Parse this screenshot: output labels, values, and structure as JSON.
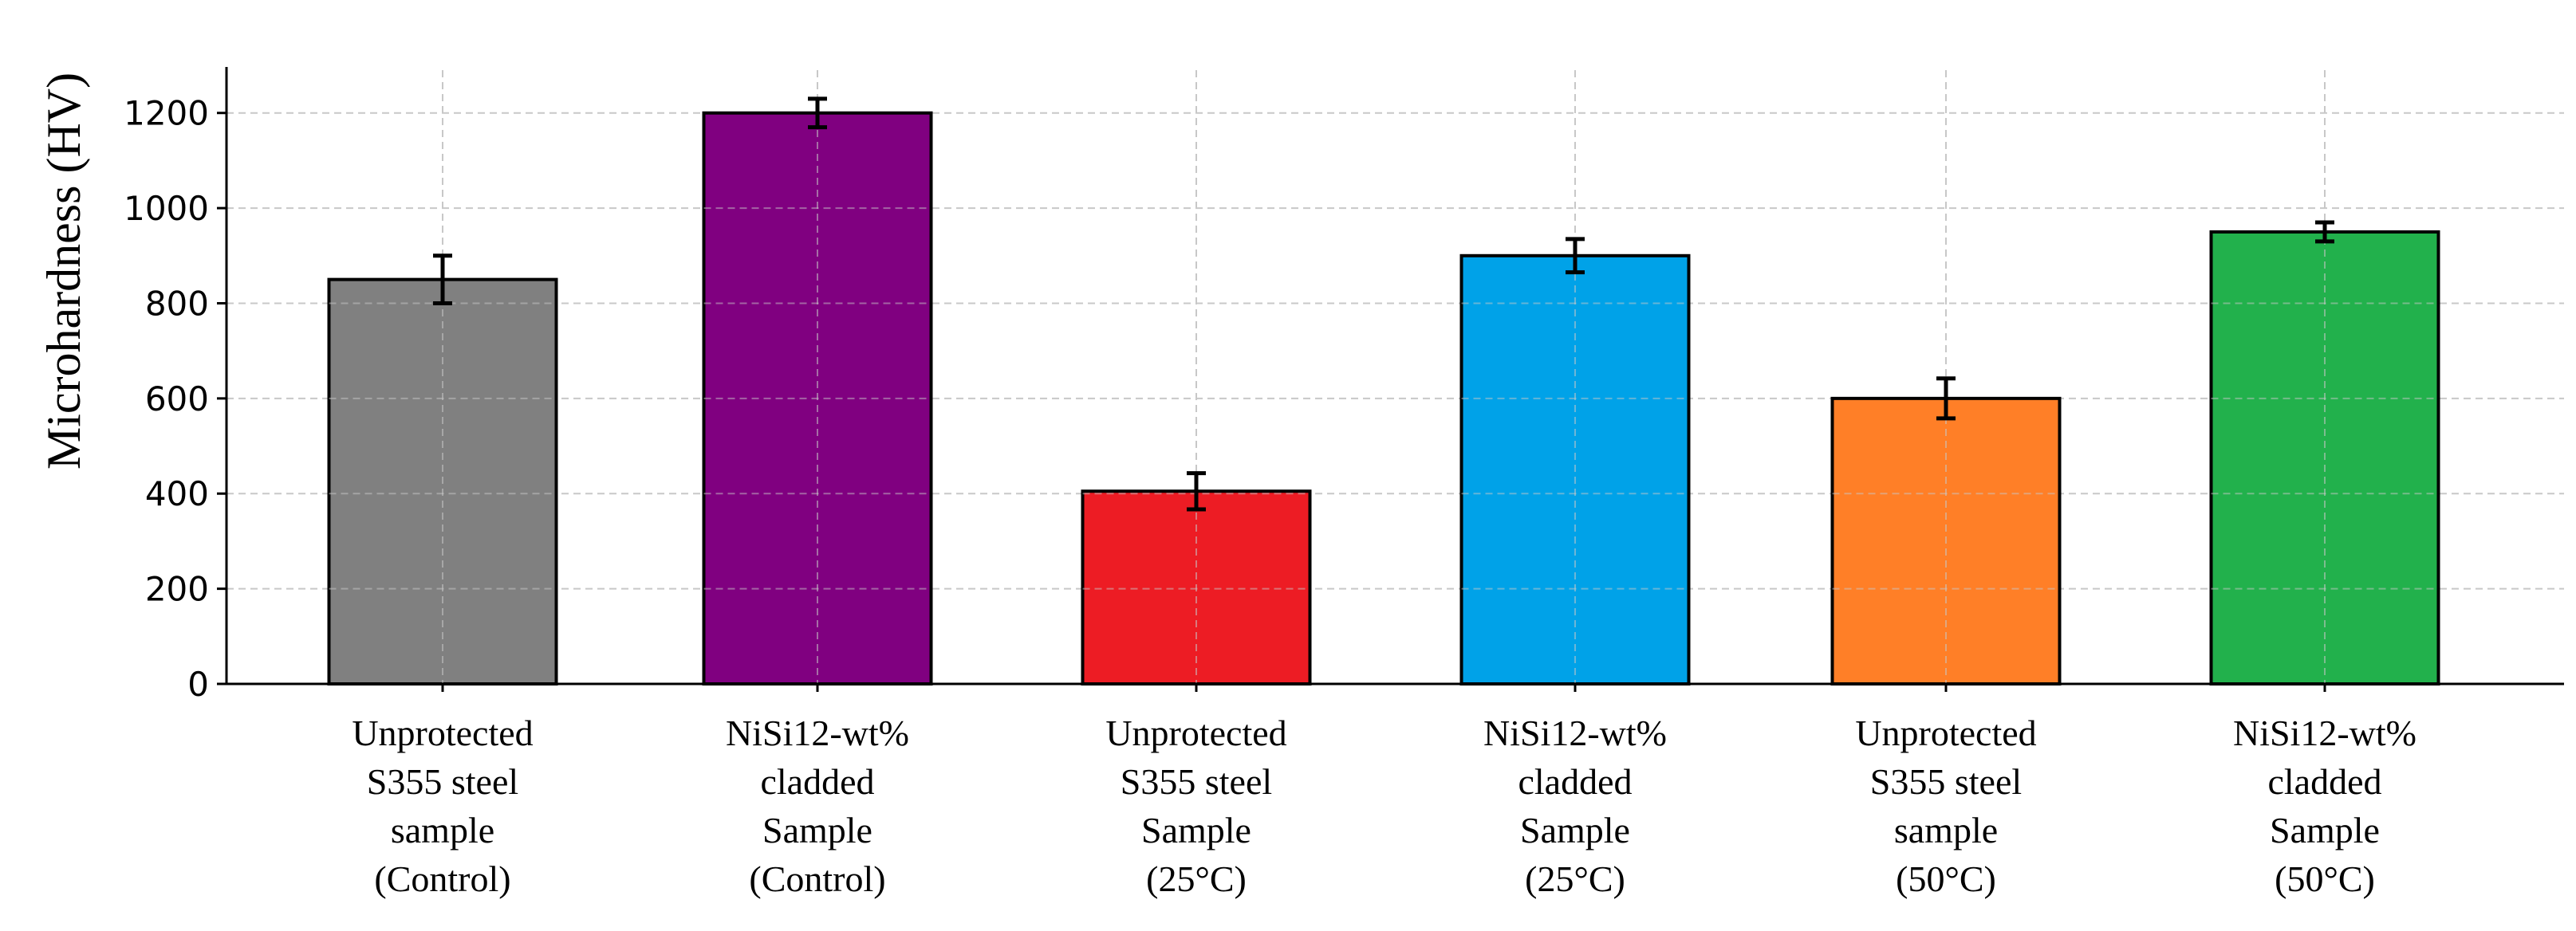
{
  "chart_data": {
    "type": "bar",
    "ylabel": "Microhardness (HV)",
    "xlabel": "",
    "title": "",
    "ylim": [
      0,
      1290
    ],
    "yticks": [
      0,
      200,
      400,
      600,
      800,
      1000,
      1200
    ],
    "grid": true,
    "categories": [
      [
        "Unprotected",
        "S355 steel",
        "sample",
        "(Control)"
      ],
      [
        "NiSi12-wt%",
        "cladded",
        "Sample",
        "(Control)"
      ],
      [
        "Unprotected",
        "S355 steel",
        "Sample",
        "(25°C)"
      ],
      [
        "NiSi12-wt%",
        "cladded",
        "Sample",
        "(25°C)"
      ],
      [
        "Unprotected",
        "S355 steel",
        "sample",
        "(50°C)"
      ],
      [
        "NiSi12-wt%",
        "cladded",
        "Sample",
        "(50°C)"
      ]
    ],
    "values": [
      850,
      1200,
      405,
      900,
      600,
      950
    ],
    "errors": [
      50,
      30,
      38,
      35,
      42,
      20
    ],
    "colors": [
      "#808080",
      "#800080",
      "#ed1c24",
      "#00a2e8",
      "#ff7f27",
      "#22b14c"
    ]
  }
}
